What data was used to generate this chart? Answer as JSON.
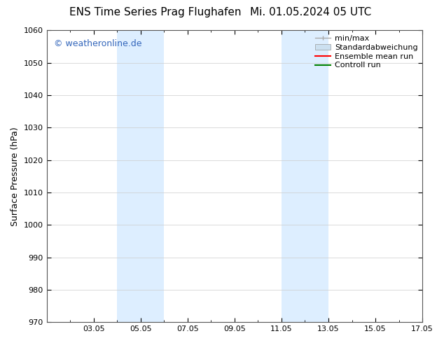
{
  "title_left": "ENS Time Series Prag Flughafen",
  "title_right": "Mi. 01.05.2024 05 UTC",
  "ylabel": "Surface Pressure (hPa)",
  "ylim": [
    970,
    1060
  ],
  "yticks": [
    970,
    980,
    990,
    1000,
    1010,
    1020,
    1030,
    1040,
    1050,
    1060
  ],
  "xlim": [
    1.0,
    17.0
  ],
  "xtick_labels": [
    "03.05",
    "05.05",
    "07.05",
    "09.05",
    "11.05",
    "13.05",
    "15.05",
    "17.05"
  ],
  "xtick_positions": [
    3,
    5,
    7,
    9,
    11,
    13,
    15,
    17
  ],
  "shade_regions": [
    {
      "xmin": 4.0,
      "xmax": 6.0,
      "color": "#ddeeff"
    },
    {
      "xmin": 11.0,
      "xmax": 13.0,
      "color": "#ddeeff"
    }
  ],
  "watermark_text": "© weatheronline.de",
  "watermark_color": "#3366bb",
  "legend_entries": [
    {
      "label": "min/max",
      "color": "#aaaaaa",
      "lw": 1.0,
      "style": "line_with_cap"
    },
    {
      "label": "Standardabweichung",
      "color": "#cce0f0",
      "lw": 8,
      "style": "thick"
    },
    {
      "label": "Ensemble mean run",
      "color": "red",
      "lw": 1.5,
      "style": "line"
    },
    {
      "label": "Controll run",
      "color": "green",
      "lw": 1.5,
      "style": "line"
    }
  ],
  "bg_color": "#ffffff",
  "grid_color": "#cccccc",
  "title_fontsize": 11,
  "label_fontsize": 9,
  "tick_fontsize": 8,
  "legend_fontsize": 8
}
